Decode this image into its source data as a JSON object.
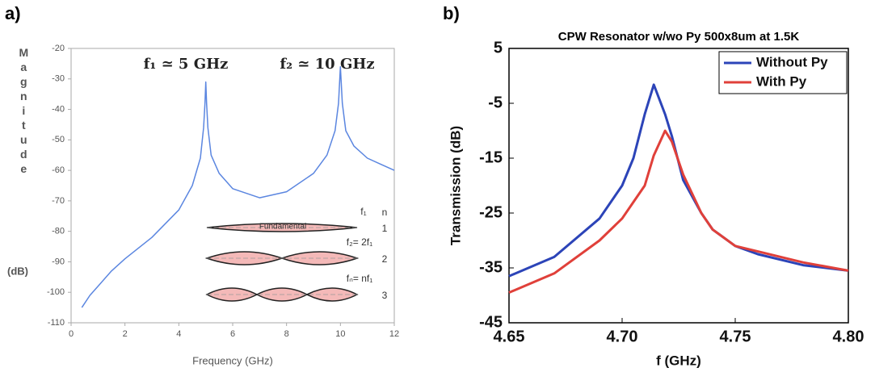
{
  "chart_data": [
    {
      "type": "line",
      "panel_label": "a)",
      "xlabel": "Frequency (GHz)",
      "ylabel": "Magnitude",
      "ylabel_unit": "(dB)",
      "annotations": [
        "f₁ ≃ 5 GHz",
        "f₂ ≃ 10 GHz"
      ],
      "inset": {
        "header": "n",
        "modes": [
          {
            "freq": "f₁",
            "n": "1",
            "label": "Fundamental"
          },
          {
            "freq": "f₂= 2f₁",
            "n": "2"
          },
          {
            "freq": "fₙ= nf₁",
            "n": "3"
          }
        ]
      },
      "xlim": [
        0,
        12
      ],
      "xticks": [
        0,
        2,
        4,
        6,
        8,
        10,
        12
      ],
      "ylim": [
        -110,
        -20
      ],
      "yticks": [
        -110,
        -100,
        -90,
        -80,
        -70,
        -60,
        -50,
        -40,
        -30,
        -20
      ],
      "x": [
        0.4,
        0.7,
        1,
        1.5,
        2,
        3,
        4,
        4.5,
        4.8,
        4.92,
        4.97,
        5.0,
        5.03,
        5.08,
        5.2,
        5.5,
        6,
        7,
        8,
        9,
        9.5,
        9.8,
        9.93,
        10.0,
        10.07,
        10.2,
        10.5,
        11,
        11.5,
        12
      ],
      "series": [
        {
          "color": "#5b86e0",
          "values": [
            -105,
            -101,
            -98,
            -93,
            -89,
            -82,
            -73,
            -65,
            -56,
            -46,
            -38,
            -31,
            -38,
            -46,
            -55,
            -61,
            -66,
            -69,
            -67,
            -61,
            -55,
            -47,
            -38,
            -26,
            -38,
            -47,
            -52,
            -56,
            -58,
            -60
          ]
        }
      ]
    },
    {
      "type": "line",
      "panel_label": "b)",
      "title": "CPW Resonator w/wo Py 500x8um at 1.5K",
      "xlabel": "f (GHz)",
      "ylabel": "Transmission (dB)",
      "xlim": [
        4.65,
        4.8
      ],
      "xticks": [
        4.65,
        {
          "value": 4.7,
          "label": "4.70"
        },
        4.75,
        {
          "value": 4.8,
          "label": "4.80"
        }
      ],
      "ylim": [
        -45,
        5
      ],
      "yticks": [
        -45,
        -35,
        -25,
        -15,
        -5,
        5
      ],
      "legend": "upper right",
      "x": [
        4.65,
        4.67,
        4.69,
        4.7,
        4.705,
        4.71,
        4.714,
        4.719,
        4.722,
        4.727,
        4.735,
        4.74,
        4.75,
        4.76,
        4.78,
        4.8
      ],
      "series": [
        {
          "name": "Without Py",
          "color": "#2c44b8",
          "values": [
            -36.5,
            -33,
            -26,
            -20,
            -15,
            -7,
            -1.6,
            -7,
            -11,
            -19,
            -25,
            -28,
            -31,
            -32.5,
            -34.5,
            -35.5
          ]
        },
        {
          "name": "With Py",
          "color": "#e0403a",
          "values": [
            -39.5,
            -36,
            -30,
            -26,
            -23,
            -20,
            -14.5,
            -10,
            -12,
            -18,
            -25,
            -28,
            -31,
            -32,
            -34,
            -35.5
          ]
        }
      ]
    }
  ]
}
